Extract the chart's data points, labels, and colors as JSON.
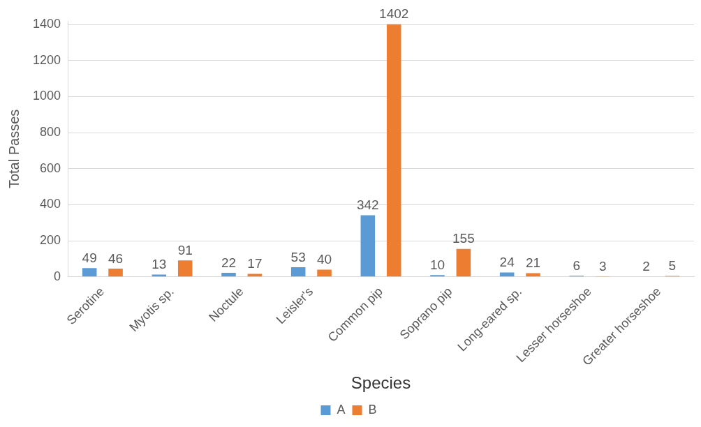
{
  "chart_data": {
    "type": "bar",
    "xlabel": "Species",
    "ylabel": "Total Passes",
    "categories": [
      "Serotine",
      "Myotis sp.",
      "Noctule",
      "Leisler's",
      "Common pip",
      "Soprano pip",
      "Long-eared sp.",
      "Lesser horseshoe",
      "Greater horseshoe"
    ],
    "series": [
      {
        "name": "A",
        "color": "#5b9bd5",
        "values": [
          49,
          13,
          22,
          53,
          342,
          10,
          24,
          6,
          2
        ]
      },
      {
        "name": "B",
        "color": "#ed7d31",
        "values": [
          46,
          91,
          17,
          40,
          1402,
          155,
          21,
          3,
          5
        ]
      }
    ],
    "ylim": [
      0,
      1420
    ],
    "yticks": [
      0,
      200,
      400,
      600,
      800,
      1000,
      1200,
      1400
    ],
    "grid": "y",
    "legend": "bottom",
    "data_labels": true
  }
}
